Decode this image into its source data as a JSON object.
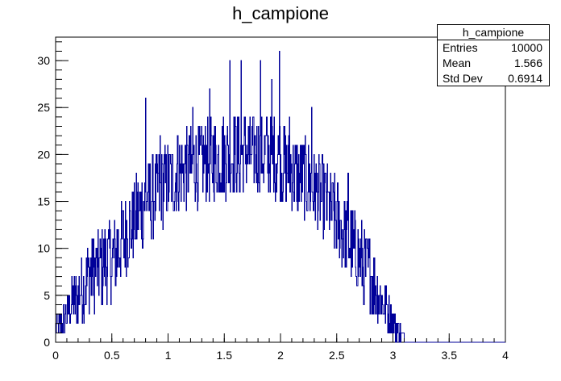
{
  "title": "h_campione",
  "stats": {
    "name": "h_campione",
    "rows": [
      {
        "key": "Entries",
        "value": "10000"
      },
      {
        "key": "Mean",
        "value": "1.566"
      },
      {
        "key": "Std Dev",
        "value": "0.6914"
      }
    ]
  },
  "colors": {
    "line": "#000099",
    "axis": "#000000"
  },
  "chart_data": {
    "type": "bar",
    "title": "h_campione",
    "xlabel": "",
    "ylabel": "",
    "xlim": [
      0,
      4
    ],
    "ylim": [
      0,
      32.5
    ],
    "grid": false,
    "legend": "none",
    "x_ticks": [
      0,
      0.5,
      1,
      1.5,
      2,
      2.5,
      3,
      3.5,
      4
    ],
    "x_tick_labels": [
      "0",
      "0.5",
      "1",
      "1.5",
      "2",
      "2.5",
      "3",
      "3.5",
      "4"
    ],
    "y_ticks": [
      0,
      5,
      10,
      15,
      20,
      25,
      30
    ],
    "y_tick_labels": [
      "0",
      "5",
      "10",
      "15",
      "20",
      "25",
      "30"
    ],
    "bins": 1000,
    "bin_width": 0.004,
    "envelope_x": [
      0,
      0.1,
      0.2,
      0.3,
      0.4,
      0.5,
      0.6,
      0.7,
      0.8,
      0.9,
      1.0,
      1.1,
      1.2,
      1.3,
      1.4,
      1.5,
      1.6,
      1.7,
      1.8,
      1.9,
      2.0,
      2.1,
      2.2,
      2.3,
      2.4,
      2.5,
      2.6,
      2.7,
      2.8,
      2.9,
      3.0,
      3.1,
      3.11,
      4.0
    ],
    "envelope_y": [
      1,
      3,
      5,
      7,
      8,
      9,
      11,
      13,
      15,
      16,
      17,
      18,
      18.5,
      19,
      19.5,
      19.8,
      20,
      20.2,
      20.2,
      20,
      19.5,
      18.5,
      17.5,
      16.5,
      15,
      13,
      11,
      9,
      7,
      4.5,
      2,
      0.5,
      0,
      0
    ],
    "highlights": [
      {
        "x": 0.8,
        "y": 26
      },
      {
        "x": 1.22,
        "y": 25
      },
      {
        "x": 1.37,
        "y": 27
      },
      {
        "x": 1.55,
        "y": 30
      },
      {
        "x": 1.65,
        "y": 30
      },
      {
        "x": 1.82,
        "y": 30
      },
      {
        "x": 1.92,
        "y": 28
      },
      {
        "x": 1.99,
        "y": 31
      },
      {
        "x": 2.28,
        "y": 25
      },
      {
        "x": 0.93,
        "y": 22
      },
      {
        "x": 2.6,
        "y": 18
      },
      {
        "x": 2.08,
        "y": 24
      }
    ],
    "noise_amplitude": 4.5
  }
}
